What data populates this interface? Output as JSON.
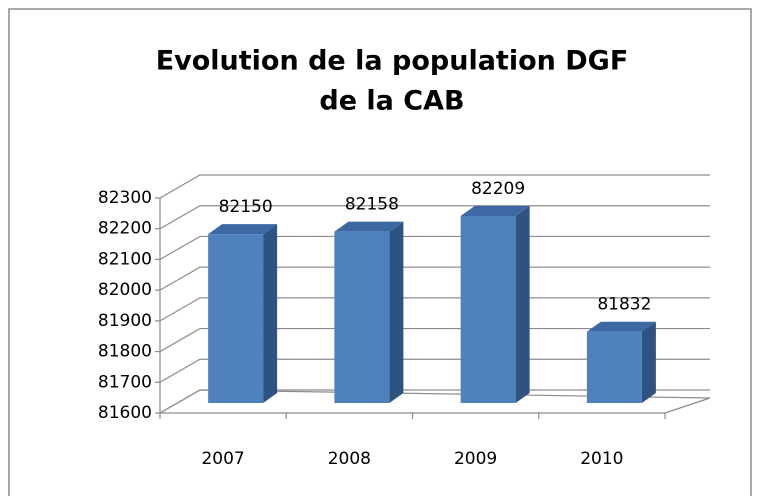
{
  "chart_data": {
    "type": "bar3d",
    "title": [
      "Evolution de la population DGF",
      "de la CAB"
    ],
    "categories": [
      "2007",
      "2008",
      "2009",
      "2010"
    ],
    "values": [
      82150,
      82158,
      82209,
      81832
    ],
    "color": "#4f81bd",
    "ylim": [
      81600,
      82300
    ],
    "yticks": [
      81600,
      81700,
      81800,
      81900,
      82000,
      82100,
      82200,
      82300
    ],
    "grid": true
  }
}
